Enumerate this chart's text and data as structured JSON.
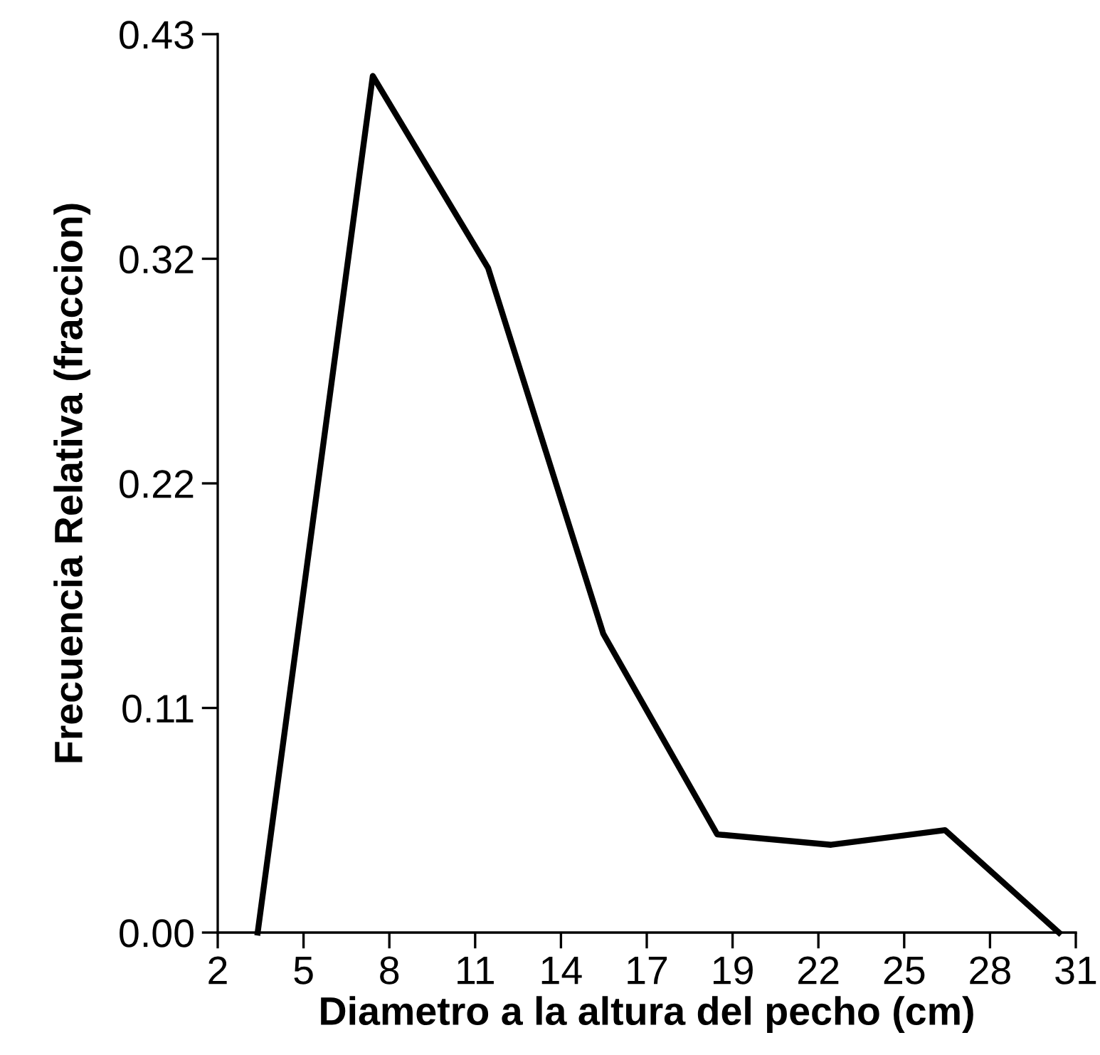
{
  "chart_data": {
    "type": "line",
    "xlabel": "Diametro a la altura del pecho (cm)",
    "ylabel": "Frecuencia Relativa (fraccion)",
    "x": [
      3.35,
      7.24,
      11.14,
      15.03,
      18.88,
      22.73,
      26.58,
      30.43
    ],
    "series": [
      {
        "color": "#000000",
        "values": [
          0.0,
          0.41,
          0.318,
          0.143,
          0.047,
          0.042,
          0.049,
          0.0
        ]
      }
    ],
    "xlim": [
      2,
      31
    ],
    "xticks": [
      {
        "value": 2,
        "label": "2"
      },
      {
        "value": 4.9,
        "label": "5"
      },
      {
        "value": 7.8,
        "label": "8"
      },
      {
        "value": 10.7,
        "label": "11"
      },
      {
        "value": 13.6,
        "label": "14"
      },
      {
        "value": 16.5,
        "label": "17"
      },
      {
        "value": 19.4,
        "label": "19"
      },
      {
        "value": 22.3,
        "label": "22"
      },
      {
        "value": 25.2,
        "label": "25"
      },
      {
        "value": 28.1,
        "label": "28"
      },
      {
        "value": 31,
        "label": "31"
      }
    ],
    "ylim": [
      0,
      0.43
    ],
    "yticks": [
      {
        "value": 0,
        "label": "0.00"
      },
      {
        "value": 0.1075,
        "label": "0.11"
      },
      {
        "value": 0.215,
        "label": "0.22"
      },
      {
        "value": 0.3225,
        "label": "0.32"
      },
      {
        "value": 0.43,
        "label": "0.43"
      }
    ],
    "grid": false,
    "legend": false,
    "marker": "none",
    "line_style": "solid"
  }
}
